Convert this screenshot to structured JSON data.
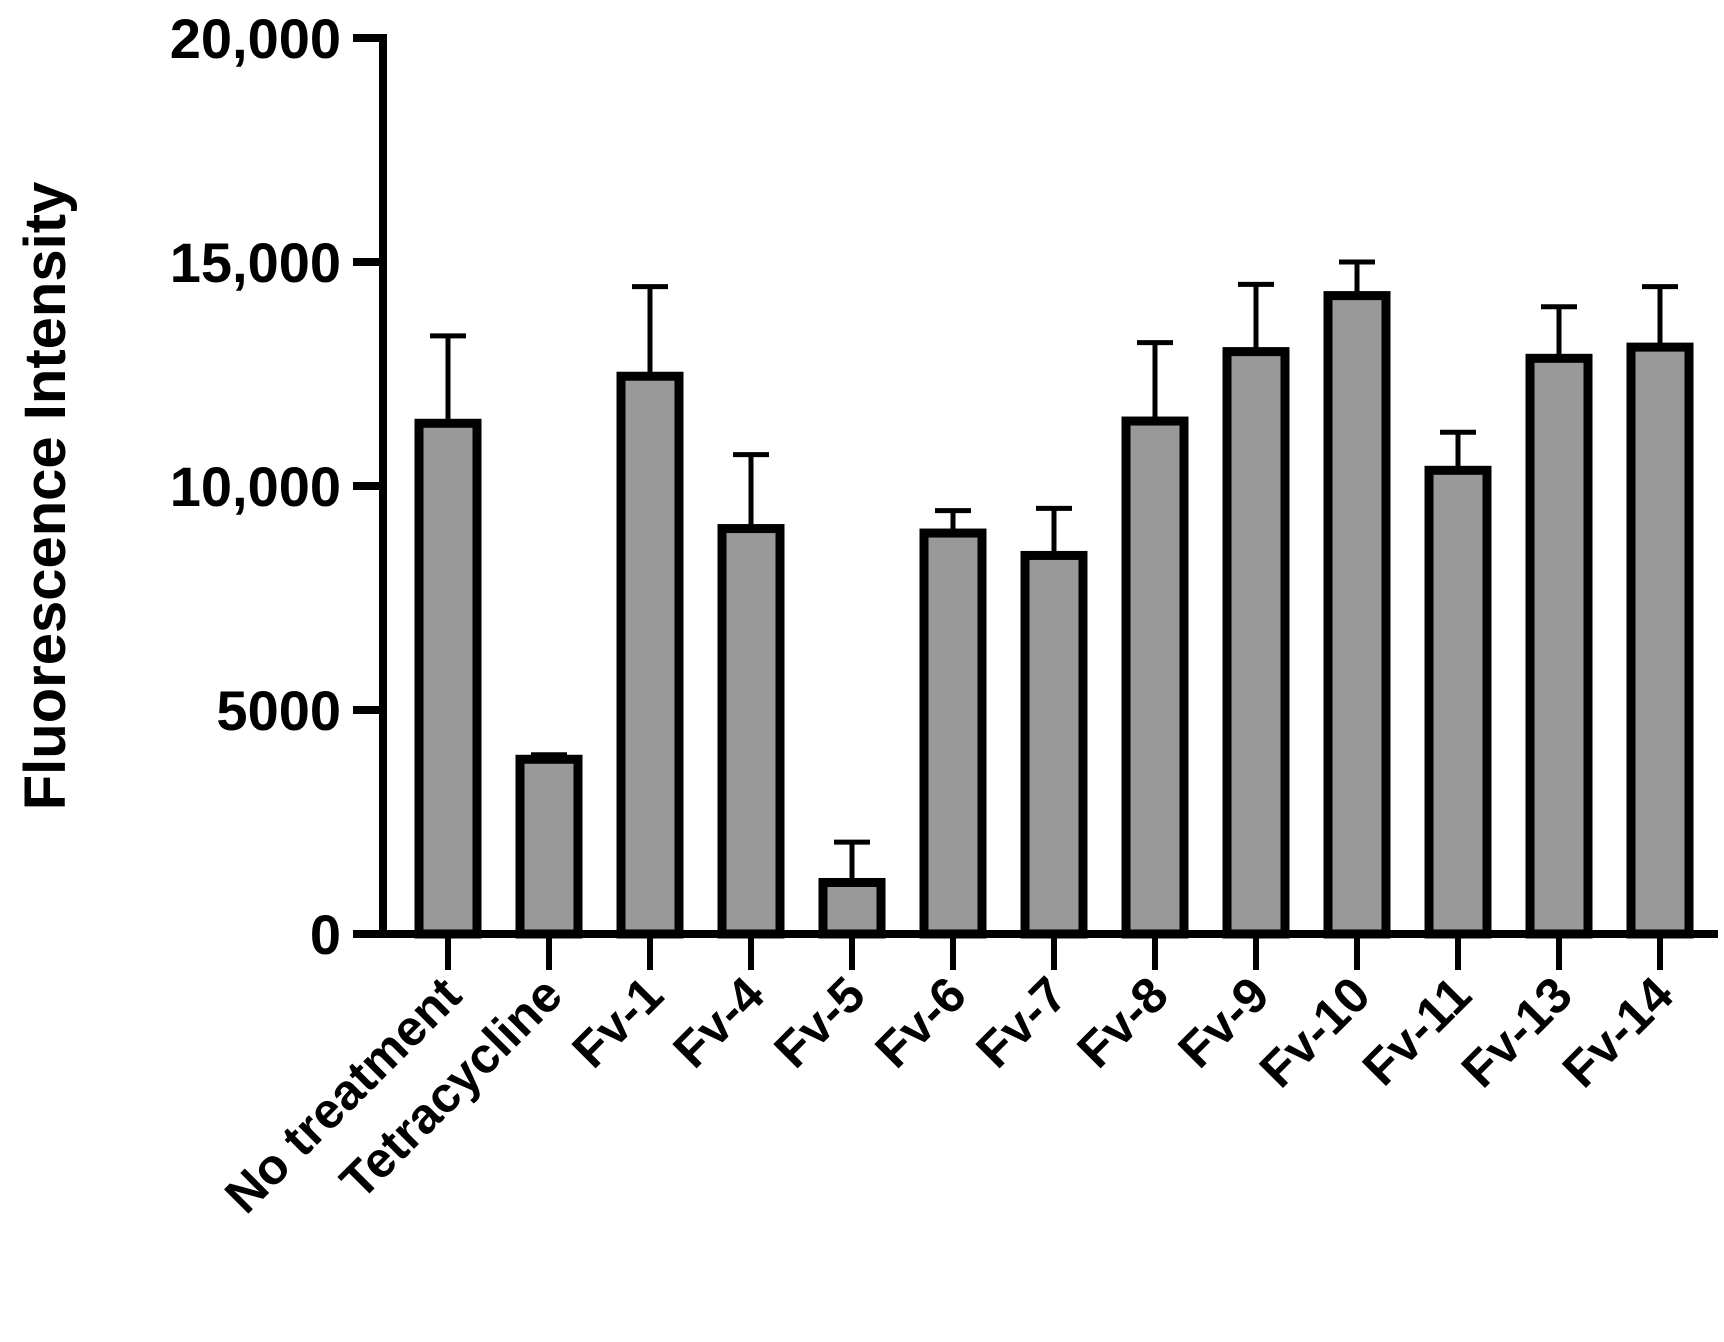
{
  "chart_data": {
    "type": "bar",
    "title": "",
    "xlabel": "",
    "ylabel": "Fluorescence Intensity",
    "ylim": [
      0,
      20000
    ],
    "yticks": [
      {
        "value": 0,
        "label": "0"
      },
      {
        "value": 5000,
        "label": "5000"
      },
      {
        "value": 10000,
        "label": "10,000"
      },
      {
        "value": 15000,
        "label": "15,000"
      },
      {
        "value": 20000,
        "label": "20,000"
      }
    ],
    "categories": [
      "No treatment",
      "Tetracycline",
      "Fv-1",
      "Fv-4",
      "Fv-5",
      "Fv-6",
      "Fv-7",
      "Fv-8",
      "Fv-9",
      "Fv-10",
      "Fv-11",
      "Fv-13",
      "Fv-14"
    ],
    "values": [
      11400,
      3900,
      12450,
      9050,
      1150,
      8950,
      8450,
      11450,
      13000,
      14250,
      10350,
      12850,
      13100
    ],
    "errors": [
      1950,
      100,
      2000,
      1650,
      900,
      500,
      1050,
      1750,
      1500,
      750,
      850,
      1150,
      1350
    ],
    "bar_color": "#999999",
    "edge_color": "#000000",
    "grid": false,
    "legend": "none"
  }
}
